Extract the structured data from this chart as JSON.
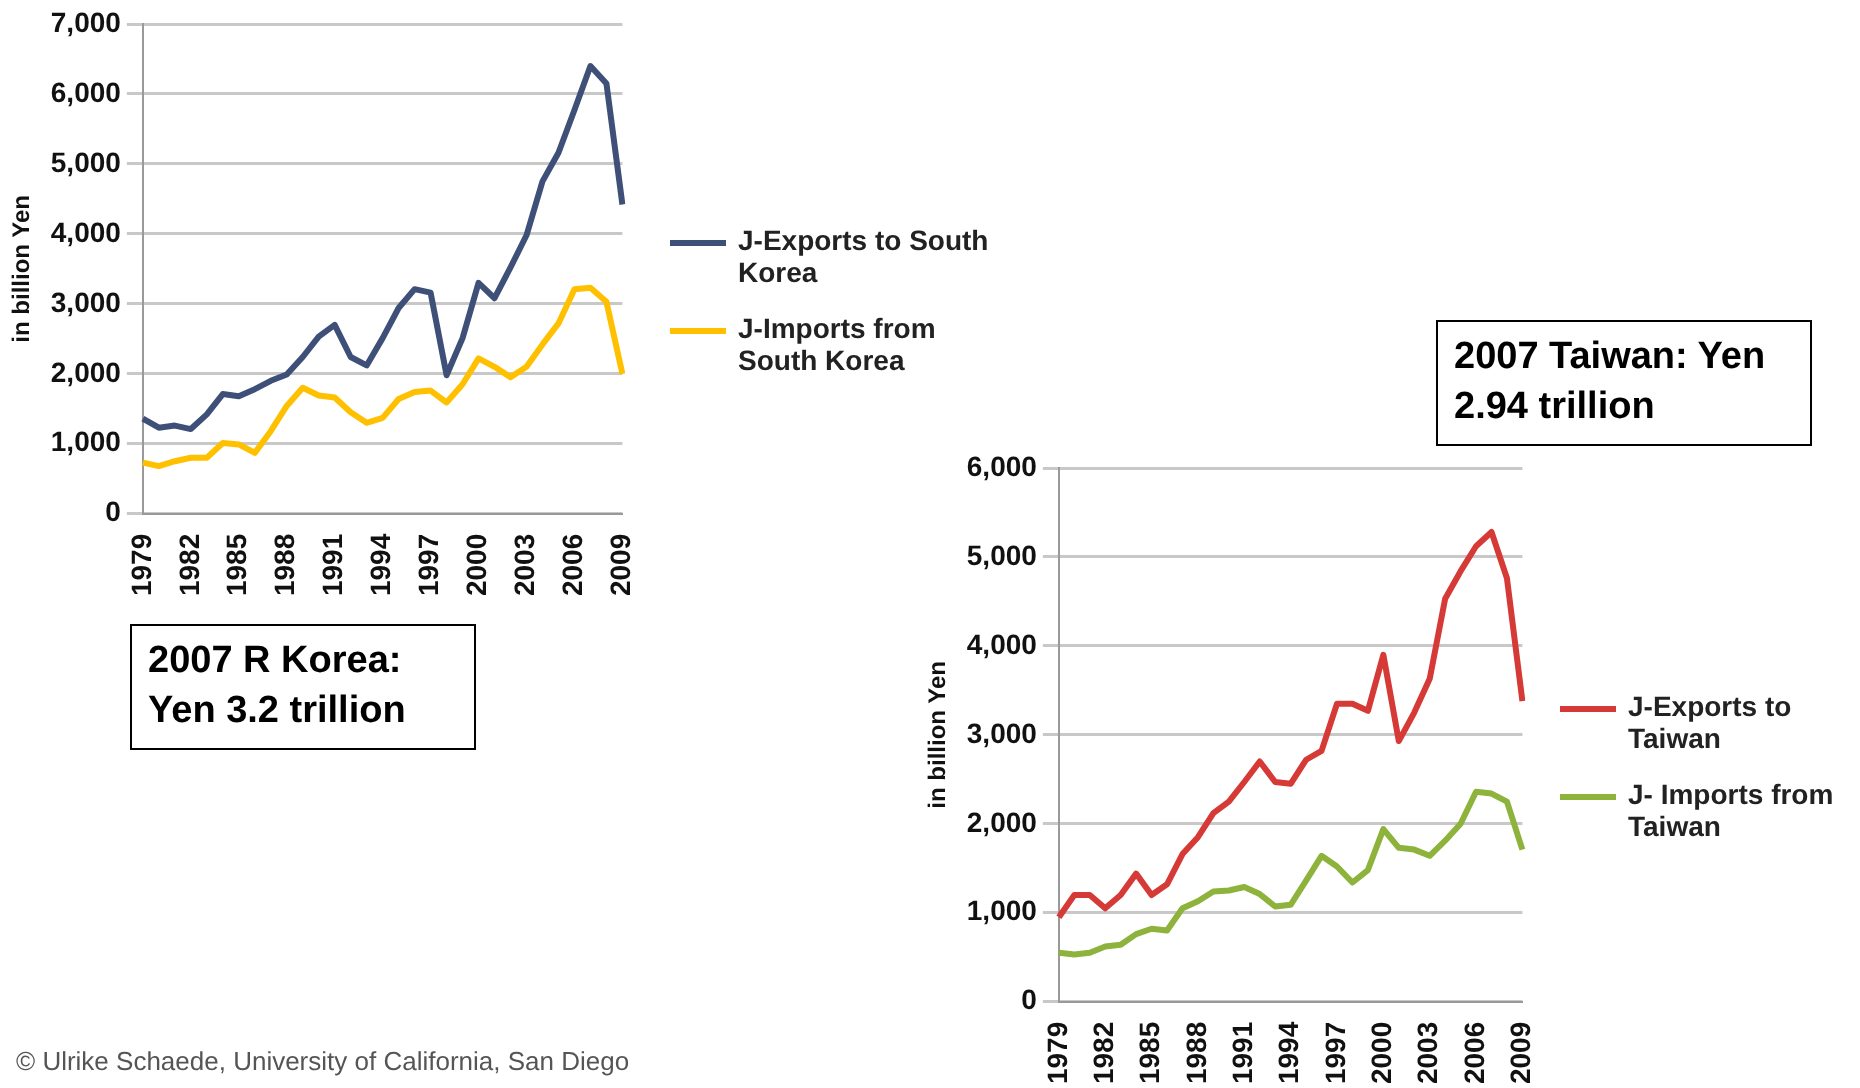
{
  "chart_data": [
    {
      "type": "line",
      "ylabel": "in billion Yen",
      "categories": [
        "1979",
        null,
        null,
        "1982",
        null,
        null,
        "1985",
        null,
        null,
        "1988",
        null,
        null,
        "1991",
        null,
        null,
        "1994",
        null,
        null,
        "1997",
        null,
        null,
        "2000",
        null,
        null,
        "2003",
        null,
        null,
        "2006",
        null,
        null,
        "2009"
      ],
      "series": [
        {
          "name": "J-Exports to South Korea",
          "color": "#3f5078",
          "values": [
            1360,
            1230,
            1260,
            1210,
            1420,
            1710,
            1680,
            1780,
            1900,
            1990,
            2240,
            2530,
            2700,
            2240,
            2120,
            2510,
            2940,
            3210,
            3160,
            1980,
            2510,
            3300,
            3080,
            3520,
            3980,
            4750,
            5160,
            5770,
            6400,
            6150,
            4420
          ]
        },
        {
          "name": "J-Imports from South Korea",
          "color": "#ffc000",
          "values": [
            730,
            680,
            750,
            800,
            800,
            1010,
            990,
            870,
            1180,
            1540,
            1800,
            1690,
            1660,
            1450,
            1300,
            1370,
            1640,
            1740,
            1760,
            1590,
            1850,
            2220,
            2100,
            1950,
            2100,
            2420,
            2720,
            3210,
            3230,
            3030,
            2000
          ]
        }
      ],
      "ylim": [
        0,
        7000
      ],
      "yticks": [
        0,
        {
          "value": 1000,
          "label": "1,000"
        },
        {
          "value": 2000,
          "label": "2,000"
        },
        {
          "value": 3000,
          "label": "3,000"
        },
        {
          "value": 4000,
          "label": "4,000"
        },
        {
          "value": 5000,
          "label": "5,000"
        },
        {
          "value": 6000,
          "label": "6,000"
        },
        {
          "value": 7000,
          "label": "7,000"
        }
      ],
      "grid": "y",
      "legend": "right",
      "marker": "none",
      "annotations": [
        "2007 R Korea: Yen 3.2 trillion",
        "© Ulrike Schaede, University of California, San Diego"
      ]
    },
    {
      "type": "line",
      "ylabel": "in billion Yen",
      "categories": [
        "1979",
        null,
        null,
        "1982",
        null,
        null,
        "1985",
        null,
        null,
        "1988",
        null,
        null,
        "1991",
        null,
        null,
        "1994",
        null,
        null,
        "1997",
        null,
        null,
        "2000",
        null,
        null,
        "2003",
        null,
        null,
        "2006",
        null,
        null,
        "2009"
      ],
      "series": [
        {
          "name": "J-Exports to Taiwan",
          "color": "#d63a37",
          "values": [
            950,
            1200,
            1200,
            1050,
            1200,
            1440,
            1200,
            1320,
            1660,
            1850,
            2120,
            2250,
            2470,
            2700,
            2470,
            2450,
            2720,
            2820,
            3350,
            3350,
            3270,
            3900,
            2930,
            3250,
            3630,
            4530,
            4840,
            5120,
            5280,
            4760,
            3380
          ]
        },
        {
          "name": "J- Imports from Taiwan",
          "color": "#8db33c",
          "values": [
            550,
            530,
            550,
            620,
            640,
            760,
            820,
            800,
            1050,
            1130,
            1240,
            1250,
            1290,
            1210,
            1070,
            1090,
            1360,
            1640,
            1520,
            1340,
            1480,
            1940,
            1730,
            1710,
            1640,
            1810,
            2000,
            2360,
            2340,
            2250,
            1710
          ]
        }
      ],
      "ylim": [
        0,
        6000
      ],
      "yticks": [
        0,
        {
          "value": 1000,
          "label": "1,000"
        },
        {
          "value": 2000,
          "label": "2,000"
        },
        {
          "value": 3000,
          "label": "3,000"
        },
        {
          "value": 4000,
          "label": "4,000"
        },
        {
          "value": 5000,
          "label": "5,000"
        },
        {
          "value": 6000,
          "label": "6,000"
        }
      ],
      "grid": "y",
      "legend": "right",
      "marker": "none",
      "annotations": [
        "2007 Taiwan: Yen 2.94 trillion"
      ]
    }
  ]
}
